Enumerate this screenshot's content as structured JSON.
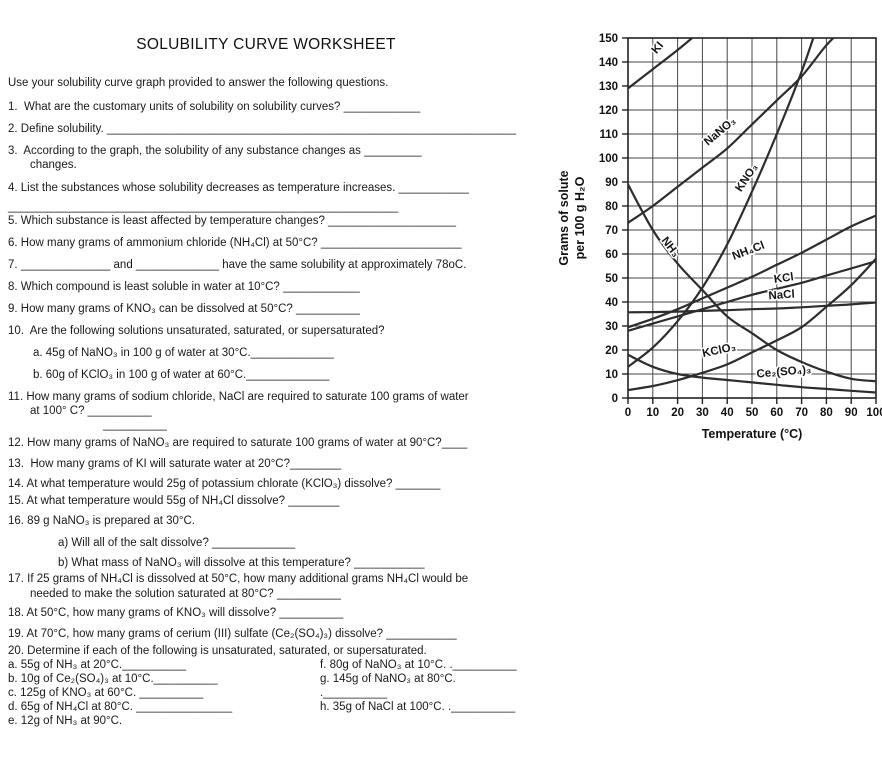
{
  "worksheet": {
    "title": "SOLUBILITY CURVE WORKSHEET",
    "intro": "Use your solubility curve graph provided to answer the following questions.",
    "lines": [
      {
        "text": "1.  What are the customary units of solubility on solubility curves? ____________"
      },
      {
        "text": "2. Define solubility. ________________________________________________________________"
      },
      {
        "text": "3.  According to the graph, the solubility of any substance changes as _________"
      },
      {
        "text": "changes."
      },
      {
        "text": "4. List the substances whose solubility decreases as temperature increases. ___________"
      },
      {
        "text": "_____________________________________________________________"
      },
      {
        "text": "5. Which substance is least affected by temperature changes? ____________________"
      },
      {
        "text": "6. How many grams of ammonium chloride (NH₄Cl) at 50°C? ______________________"
      },
      {
        "text": "7. ______________ and _____________ have the same solubility at approximately 78oC."
      },
      {
        "text": "8. Which compound is least soluble in water at 10°C? ____________"
      },
      {
        "text": "9. How many grams of KNO₃ can be dissolved at 50°C? __________"
      },
      {
        "text": "10.  Are the following solutions unsaturated, saturated, or supersaturated?"
      },
      {
        "text": "a. 45g of NaNO₃ in 100 g of water at 30°C._____________"
      },
      {
        "text": "b. 60g of KClO₃ in 100 g of water at 60°C._____________"
      },
      {
        "text": "11. How many grams of sodium chloride, NaCl are required to saturate 100 grams of water"
      },
      {
        "text": "at 100° C? __________"
      },
      {
        "text": "__________"
      },
      {
        "text": "12. How many grams of NaNO₃ are required to saturate 100 grams of water at 90°C?____"
      },
      {
        "text": "13.  How many grams of KI will saturate water at 20°C?________"
      },
      {
        "text": "14. At what temperature would 25g of potassium chlorate (KClO₃) dissolve? _______"
      },
      {
        "text": "15. At what temperature would 55g of NH₄Cl dissolve? ________"
      },
      {
        "text": "16. 89 g NaNO₃ is prepared at 30°C."
      },
      {
        "text": "a) Will all of the salt dissolve? _____________"
      },
      {
        "text": "b) What mass of NaNO₃ will dissolve at this temperature? ___________"
      },
      {
        "text": "17. If 25 grams of NH₄Cl is dissolved at 50°C, how many additional grams NH₄Cl would be"
      },
      {
        "text": "needed to make the solution saturated at 80°C? __________"
      },
      {
        "text": "18. At 50°C, how many grams of KNO₃ will dissolve? __________"
      },
      {
        "text": "19. At 70°C, how many grams of cerium (III) sulfate (Ce₂(SO₄)₃) dissolve? ___________"
      },
      {
        "text": "20. Determine if each of the following is unsaturated, saturated, or supersaturated."
      }
    ],
    "q20_left": [
      {
        "text": "a. 55g of NH₃ at 20°C.__________"
      },
      {
        "text": "b. 10g of Ce₂(SO₄)₃ at 10°C.__________"
      },
      {
        "text": "c. 125g of KNO₃ at 60°C. __________"
      },
      {
        "text": "d. 65g of NH₄Cl at 80°C. _______________"
      },
      {
        "text": "e. 12g of NH₃ at 90°C."
      }
    ],
    "q20_right": [
      {
        "text": "f. 80g of NaNO₃ at 10°C. .__________"
      },
      {
        "text": "g. 145g of NaNO₃ at 80°C. .__________"
      },
      {
        "text": "h. 35g of NaCl at 100°C. .__________"
      }
    ]
  },
  "chart_data": {
    "type": "line",
    "title": "",
    "xlabel": "Temperature (°C)",
    "ylabel": "Grams of solute per 100 g H₂O",
    "ylabel_lines": [
      "Grams of solute",
      "per 100 g H₂O"
    ],
    "xlim": [
      0,
      100
    ],
    "ylim": [
      0,
      150
    ],
    "x_ticks": [
      0,
      10,
      20,
      30,
      40,
      50,
      60,
      70,
      80,
      90,
      100
    ],
    "y_ticks": [
      0,
      10,
      20,
      30,
      40,
      50,
      60,
      70,
      80,
      90,
      100,
      110,
      120,
      130,
      140,
      150
    ],
    "grid": true,
    "legend_position": "labels-on-curves",
    "series": [
      {
        "name": "KI",
        "points": [
          [
            0,
            129
          ],
          [
            10,
            137
          ],
          [
            20,
            145
          ],
          [
            27,
            151
          ]
        ],
        "label_at": [
          13,
          145
        ],
        "label_angle": -50
      },
      {
        "name": "NaNO₃",
        "points": [
          [
            0,
            73
          ],
          [
            10,
            80
          ],
          [
            20,
            88
          ],
          [
            30,
            96
          ],
          [
            40,
            104
          ],
          [
            50,
            114
          ],
          [
            60,
            124
          ],
          [
            70,
            134
          ],
          [
            80,
            147
          ],
          [
            87,
            154
          ]
        ],
        "label_at": [
          38,
          110
        ],
        "label_angle": -40
      },
      {
        "name": "KNO₃",
        "points": [
          [
            0,
            13
          ],
          [
            10,
            21
          ],
          [
            20,
            32
          ],
          [
            30,
            46
          ],
          [
            40,
            64
          ],
          [
            50,
            86
          ],
          [
            60,
            110
          ],
          [
            70,
            136
          ],
          [
            76,
            154
          ]
        ],
        "label_at": [
          49,
          91
        ],
        "label_angle": -56
      },
      {
        "name": "NH₃",
        "points": [
          [
            0,
            89
          ],
          [
            10,
            70
          ],
          [
            20,
            56
          ],
          [
            30,
            45
          ],
          [
            40,
            34
          ],
          [
            50,
            27
          ],
          [
            60,
            20
          ],
          [
            70,
            15
          ],
          [
            80,
            11
          ],
          [
            90,
            8
          ],
          [
            100,
            7
          ]
        ],
        "label_at": [
          16,
          62
        ],
        "label_angle": 52
      },
      {
        "name": "NH₄Cl",
        "points": [
          [
            0,
            29.5
          ],
          [
            10,
            33
          ],
          [
            20,
            37
          ],
          [
            30,
            41.5
          ],
          [
            40,
            46
          ],
          [
            50,
            50.5
          ],
          [
            60,
            55.5
          ],
          [
            70,
            60.5
          ],
          [
            80,
            66
          ],
          [
            90,
            71.5
          ],
          [
            100,
            76
          ]
        ],
        "label_at": [
          49,
          60
        ],
        "label_angle": -21
      },
      {
        "name": "KCl",
        "points": [
          [
            0,
            28
          ],
          [
            10,
            31
          ],
          [
            20,
            34
          ],
          [
            30,
            37
          ],
          [
            40,
            40
          ],
          [
            50,
            43
          ],
          [
            60,
            45.5
          ],
          [
            70,
            48
          ],
          [
            80,
            51
          ],
          [
            90,
            54
          ],
          [
            100,
            57
          ]
        ],
        "label_at": [
          63,
          48.5
        ],
        "label_angle": -8
      },
      {
        "name": "NaCl",
        "points": [
          [
            0,
            35.7
          ],
          [
            10,
            35.8
          ],
          [
            20,
            36
          ],
          [
            30,
            36.3
          ],
          [
            40,
            36.6
          ],
          [
            50,
            37
          ],
          [
            60,
            37.3
          ],
          [
            70,
            37.8
          ],
          [
            80,
            38.4
          ],
          [
            90,
            39
          ],
          [
            100,
            39.8
          ]
        ],
        "label_at": [
          62,
          41.5
        ],
        "label_angle": -4
      },
      {
        "name": "KClO₃",
        "points": [
          [
            0,
            3.3
          ],
          [
            10,
            5
          ],
          [
            20,
            7.4
          ],
          [
            30,
            10.5
          ],
          [
            40,
            14
          ],
          [
            50,
            19
          ],
          [
            60,
            24
          ],
          [
            70,
            29.5
          ],
          [
            80,
            38
          ],
          [
            90,
            47
          ],
          [
            100,
            58
          ]
        ],
        "label_at": [
          37,
          18.5
        ],
        "label_angle": -12
      },
      {
        "name": "Ce₂(SO₄)₃",
        "points": [
          [
            0,
            18
          ],
          [
            10,
            13
          ],
          [
            20,
            10
          ],
          [
            30,
            8.5
          ],
          [
            40,
            7.5
          ],
          [
            50,
            6.5
          ],
          [
            60,
            5.5
          ],
          [
            70,
            4.5
          ],
          [
            80,
            3.8
          ],
          [
            90,
            3
          ],
          [
            100,
            2.3
          ]
        ],
        "label_at": [
          63,
          9.5
        ],
        "label_angle": -5
      }
    ]
  }
}
